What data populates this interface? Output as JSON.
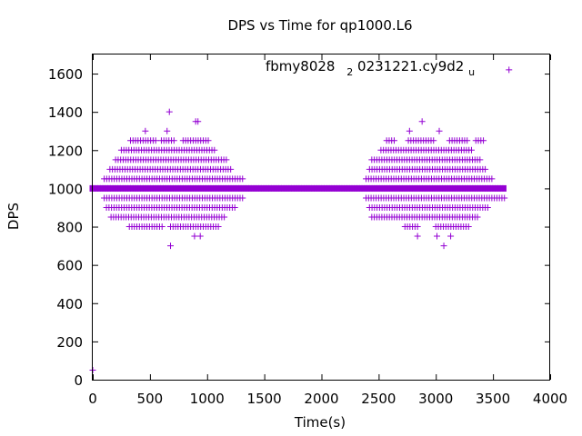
{
  "chart_data": {
    "type": "scatter",
    "title": "DPS vs Time for qp1000.L6",
    "xlabel": "Time(s)",
    "ylabel": "DPS",
    "xlim": [
      0,
      4000
    ],
    "ylim": [
      0,
      1700
    ],
    "xticks": [
      "0",
      "500",
      "1000",
      "1500",
      "2000",
      "2500",
      "3000",
      "3500",
      "4000"
    ],
    "yticks": [
      "0",
      "200",
      "400",
      "600",
      "800",
      "1000",
      "1200",
      "1400",
      "1600"
    ],
    "grid": false,
    "legend_position": "top-right",
    "series": [
      {
        "name_parts": [
          "fbmy8028",
          "2",
          "0231221.cy9d2",
          "u"
        ],
        "color": "#9400d3",
        "marker": "plus",
        "points": [
          [
            0,
            50
          ],
          [
            0,
            1000
          ],
          [
            3640,
            1620
          ],
          [
            460,
            1300
          ],
          [
            650,
            1300
          ],
          [
            670,
            1400
          ],
          [
            900,
            1350
          ],
          [
            920,
            1350
          ],
          [
            2880,
            1350
          ],
          [
            2770,
            1300
          ],
          [
            3030,
            1300
          ],
          [
            680,
            700
          ],
          [
            3070,
            700
          ],
          [
            890,
            750
          ],
          [
            940,
            750
          ],
          [
            2840,
            750
          ],
          [
            3010,
            750
          ],
          [
            3130,
            750
          ]
        ],
        "bands": [
          {
            "y": 1250,
            "ranges": [
              [
                330,
                560
              ],
              [
                600,
                720
              ],
              [
                790,
                1020
              ],
              [
                2570,
                2650
              ],
              [
                2760,
                2990
              ],
              [
                3120,
                3290
              ],
              [
                3350,
                3420
              ]
            ]
          },
          {
            "y": 1200,
            "ranges": [
              [
                250,
                1070
              ],
              [
                2520,
                3330
              ]
            ]
          },
          {
            "y": 1150,
            "ranges": [
              [
                200,
                1170
              ],
              [
                2440,
                3390
              ]
            ]
          },
          {
            "y": 1100,
            "ranges": [
              [
                150,
                1220
              ],
              [
                2420,
                3440
              ]
            ]
          },
          {
            "y": 1050,
            "ranges": [
              [
                100,
                1320
              ],
              [
                2390,
                3510
              ]
            ]
          },
          {
            "y": 1000,
            "ranges": [
              [
                0,
                3590
              ]
            ]
          },
          {
            "y": 950,
            "ranges": [
              [
                100,
                1320
              ],
              [
                2390,
                3600
              ]
            ]
          },
          {
            "y": 900,
            "ranges": [
              [
                120,
                1250
              ],
              [
                2420,
                3460
              ]
            ]
          },
          {
            "y": 850,
            "ranges": [
              [
                160,
                1170
              ],
              [
                2440,
                3380
              ]
            ]
          },
          {
            "y": 800,
            "ranges": [
              [
                320,
                620
              ],
              [
                680,
                1110
              ],
              [
                2730,
                2860
              ],
              [
                3000,
                3300
              ]
            ]
          }
        ]
      }
    ]
  }
}
